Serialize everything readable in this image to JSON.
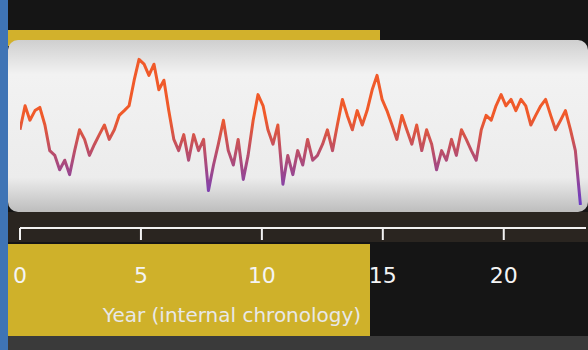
{
  "chart_data": {
    "type": "line",
    "x_label": "Year (internal chronology)",
    "xlim": [
      0,
      23.4
    ],
    "xticks": [
      0,
      5,
      10,
      15,
      20
    ],
    "ylim": [
      0,
      100
    ],
    "tick_labels": "x",
    "grid": false,
    "series": [
      {
        "color": "#f05a2a",
        "x": [
          0,
          0.21,
          0.41,
          0.62,
          0.82,
          1.03,
          1.23,
          1.44,
          1.64,
          1.85,
          2.05,
          2.26,
          2.46,
          2.67,
          2.87,
          3.08,
          3.28,
          3.49,
          3.69,
          3.9,
          4.1,
          4.31,
          4.51,
          4.72,
          4.92,
          5.13,
          5.33,
          5.54,
          5.74,
          5.95,
          6.15,
          6.36,
          6.56,
          6.77,
          6.97,
          7.18,
          7.38,
          7.59,
          7.79,
          8.0,
          8.2,
          8.41,
          8.61,
          8.82,
          9.02,
          9.23,
          9.43,
          9.64,
          9.84,
          10.05,
          10.25,
          10.46,
          10.66,
          10.87,
          11.07,
          11.28,
          11.48,
          11.69,
          11.89,
          12.1,
          12.3,
          12.51,
          12.71,
          12.92,
          13.12,
          13.33,
          13.53,
          13.74,
          13.94,
          14.15,
          14.35,
          14.56,
          14.76,
          14.97,
          15.17,
          15.38,
          15.58,
          15.79,
          15.99,
          16.2,
          16.4,
          16.61,
          16.81,
          17.02,
          17.22,
          17.43,
          17.63,
          17.84,
          18.04,
          18.25,
          18.45,
          18.66,
          18.86,
          19.07,
          19.27,
          19.48,
          19.68,
          19.89,
          20.09,
          20.3,
          20.5,
          20.71,
          20.91,
          21.12,
          21.32,
          21.53,
          21.73,
          21.94,
          22.14,
          22.35,
          22.55,
          22.76,
          22.96,
          23.17
        ],
        "values": [
          47,
          62,
          53,
          59,
          61,
          50,
          34,
          31,
          22,
          28,
          19,
          34,
          47,
          41,
          31,
          38,
          44,
          50,
          41,
          47,
          56,
          59,
          62,
          78,
          91,
          88,
          81,
          88,
          72,
          78,
          59,
          41,
          34,
          44,
          28,
          44,
          34,
          41,
          9,
          25,
          38,
          53,
          34,
          25,
          41,
          16,
          31,
          53,
          69,
          62,
          47,
          38,
          50,
          13,
          31,
          19,
          34,
          25,
          41,
          28,
          31,
          38,
          47,
          34,
          50,
          66,
          56,
          47,
          59,
          50,
          59,
          72,
          81,
          66,
          59,
          50,
          41,
          56,
          47,
          38,
          50,
          34,
          47,
          38,
          22,
          34,
          28,
          41,
          31,
          47,
          41,
          34,
          28,
          47,
          56,
          53,
          62,
          69,
          62,
          66,
          59,
          66,
          62,
          50,
          56,
          62,
          66,
          56,
          47,
          53,
          59,
          47,
          34,
          0
        ]
      }
    ]
  }
}
